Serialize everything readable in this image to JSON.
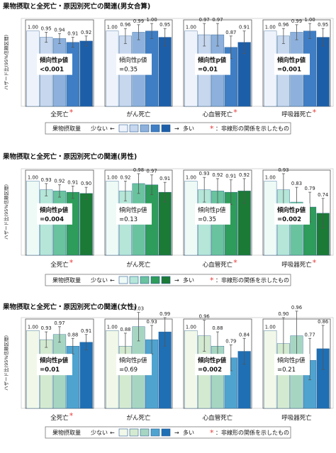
{
  "chart_data": [
    {
      "type": "bar",
      "title": "果物摂取と全死亡・原因別死亡の関連(男女合算)",
      "ylabel": "ハザード比(95%信頼区間)",
      "ylim": [
        0.4,
        1.1
      ],
      "categories": [
        "全死亡",
        "がん死亡",
        "心血管死亡",
        "呼吸器死亡"
      ],
      "nonlinear": [
        true,
        false,
        true,
        true
      ],
      "series_colors": [
        "#eef3fb",
        "#c6d7ee",
        "#8db1dc",
        "#3f7ec4",
        "#1d5ea8"
      ],
      "values": [
        [
          1.0,
          0.95,
          0.94,
          0.91,
          0.92
        ],
        [
          1.0,
          0.96,
          0.99,
          1.0,
          0.95
        ],
        [
          1.0,
          0.97,
          0.97,
          0.87,
          0.91
        ],
        [
          1.0,
          0.96,
          0.99,
          1.0,
          0.95
        ]
      ],
      "ci_low": [
        [
          1.0,
          0.91,
          0.9,
          0.87,
          0.88
        ],
        [
          1.0,
          0.9,
          0.93,
          0.94,
          0.88
        ],
        [
          1.0,
          0.88,
          0.88,
          0.78,
          0.82
        ],
        [
          1.0,
          0.9,
          0.93,
          0.94,
          0.88
        ]
      ],
      "ci_high": [
        [
          1.0,
          0.99,
          0.98,
          0.95,
          0.96
        ],
        [
          1.0,
          1.02,
          1.05,
          1.06,
          1.02
        ],
        [
          1.0,
          1.06,
          1.06,
          0.96,
          1.0
        ],
        [
          1.0,
          1.02,
          1.05,
          1.06,
          1.02
        ]
      ],
      "value_labels": [
        [
          "1.00",
          "0.95",
          "0.94",
          "0.91",
          "0.92"
        ],
        [
          "1.00",
          "0.96",
          "0.99",
          "1.00",
          "0.95"
        ],
        [
          "1.00",
          "0.97",
          "0.97",
          "0.87",
          "0.91"
        ],
        [
          "1.00",
          "0.96",
          "0.99",
          "1.00",
          "0.95"
        ]
      ],
      "p_trend": [
        {
          "label": "傾向性p値",
          "value": "<0.001",
          "bold": true
        },
        {
          "label": "傾向性p値",
          "value": "=0.35",
          "bold": false
        },
        {
          "label": "傾向性p値",
          "value": "=0.01",
          "bold": true
        },
        {
          "label": "傾向性p値",
          "value": "=0.001",
          "bold": true
        }
      ]
    },
    {
      "type": "bar",
      "title": "果物摂取と全死亡・原因別死亡の関連(男性)",
      "ylabel": "ハザード比(95%信頼区間)",
      "ylim": [
        0.4,
        1.1
      ],
      "categories": [
        "全死亡",
        "がん死亡",
        "心血管死亡",
        "呼吸器死亡"
      ],
      "nonlinear": [
        true,
        false,
        true,
        true
      ],
      "series_colors": [
        "#eefaf6",
        "#b5e6d8",
        "#69c39e",
        "#2e9c5a",
        "#1b7a36"
      ],
      "values": [
        [
          1.0,
          0.93,
          0.92,
          0.91,
          0.9
        ],
        [
          1.0,
          0.92,
          0.98,
          0.97,
          0.91
        ],
        [
          1.0,
          0.93,
          0.92,
          0.91,
          0.92
        ],
        [
          1.0,
          0.93,
          0.83,
          0.79,
          0.74
        ]
      ],
      "ci_low": [
        [
          1.0,
          0.88,
          0.87,
          0.86,
          0.85
        ],
        [
          1.0,
          0.84,
          0.9,
          0.89,
          0.83
        ],
        [
          1.0,
          0.83,
          0.82,
          0.81,
          0.82
        ],
        [
          1.0,
          0.8,
          0.71,
          0.67,
          0.62
        ]
      ],
      "ci_high": [
        [
          1.0,
          0.98,
          0.97,
          0.96,
          0.95
        ],
        [
          1.0,
          1.0,
          1.06,
          1.05,
          0.99
        ],
        [
          1.0,
          1.03,
          1.02,
          1.01,
          1.02
        ],
        [
          1.0,
          1.06,
          0.95,
          0.91,
          0.86
        ]
      ],
      "value_labels": [
        [
          "1.00",
          "0.93",
          "0.92",
          "0.91",
          "0.90"
        ],
        [
          "1.00",
          "0.92",
          "0.98",
          "0.97",
          "0.91"
        ],
        [
          "1.00",
          "0.93",
          "0.92",
          "0.91",
          "0.92"
        ],
        [
          "1.00",
          "0.93",
          "0.83",
          "0.79",
          "0.74"
        ]
      ],
      "p_trend": [
        {
          "label": "傾向性p値",
          "value": "=0.004",
          "bold": true
        },
        {
          "label": "傾向性p値",
          "value": "=0.13",
          "bold": false
        },
        {
          "label": "傾向性p値",
          "value": "=0.35",
          "bold": false
        },
        {
          "label": "傾向性p値",
          "value": "=0.002",
          "bold": true
        }
      ]
    },
    {
      "type": "bar",
      "title": "果物摂取と全死亡・原因別死亡の関連(女性)",
      "ylabel": "ハザード比(95%信頼区間)",
      "ylim": [
        0.4,
        1.1
      ],
      "categories": [
        "全死亡",
        "がん死亡",
        "心血管死亡",
        "呼吸器死亡"
      ],
      "nonlinear": [
        true,
        false,
        false,
        false
      ],
      "series_colors": [
        "#f1f8e9",
        "#d4ead0",
        "#a6d6c2",
        "#4fa3cf",
        "#1f6fb4"
      ],
      "values": [
        [
          1.0,
          0.93,
          0.97,
          0.88,
          0.91
        ],
        [
          1.0,
          0.88,
          1.03,
          0.93,
          0.99
        ],
        [
          1.0,
          0.96,
          0.88,
          0.79,
          0.84
        ],
        [
          1.0,
          0.9,
          0.96,
          0.77,
          0.86
        ]
      ],
      "ci_low": [
        [
          1.0,
          0.87,
          0.91,
          0.82,
          0.85
        ],
        [
          1.0,
          0.78,
          0.92,
          0.82,
          0.88
        ],
        [
          1.0,
          0.84,
          0.77,
          0.69,
          0.74
        ],
        [
          1.0,
          0.72,
          0.79,
          0.62,
          0.7
        ]
      ],
      "ci_high": [
        [
          1.0,
          0.99,
          1.03,
          0.94,
          0.97
        ],
        [
          1.0,
          0.98,
          1.14,
          1.04,
          1.1
        ],
        [
          1.0,
          1.08,
          0.99,
          0.89,
          0.94
        ],
        [
          1.0,
          1.1,
          1.15,
          0.94,
          1.04
        ]
      ],
      "value_labels": [
        [
          "1.00",
          "0.93",
          "0.97",
          "0.88",
          "0.91"
        ],
        [
          "1.00",
          "0.88",
          "1.03",
          "0.93",
          "0.99"
        ],
        [
          "1.00",
          "0.96",
          "0.88",
          "0.79",
          "0.84"
        ],
        [
          "1.00",
          "0.90",
          "0.96",
          "0.77",
          "0.86"
        ]
      ],
      "p_trend": [
        {
          "label": "傾向性p値",
          "value": "=0.01",
          "bold": true
        },
        {
          "label": "傾向性p値",
          "value": "=0.69",
          "bold": false
        },
        {
          "label": "傾向性p値",
          "value": "=0.002",
          "bold": true
        },
        {
          "label": "傾向性p値",
          "value": "=0.21",
          "bold": false
        }
      ]
    }
  ],
  "legend": {
    "label": "果物摂取量",
    "low": "少ない",
    "low_arrow": "←",
    "high_arrow": "→",
    "high": "多い",
    "note": "：非線形の関係を示したもの",
    "star": "*"
  },
  "colors": {
    "star": "#e53935",
    "frame": "#555555",
    "grid": "#dddddd",
    "errorbar": "#555555"
  }
}
